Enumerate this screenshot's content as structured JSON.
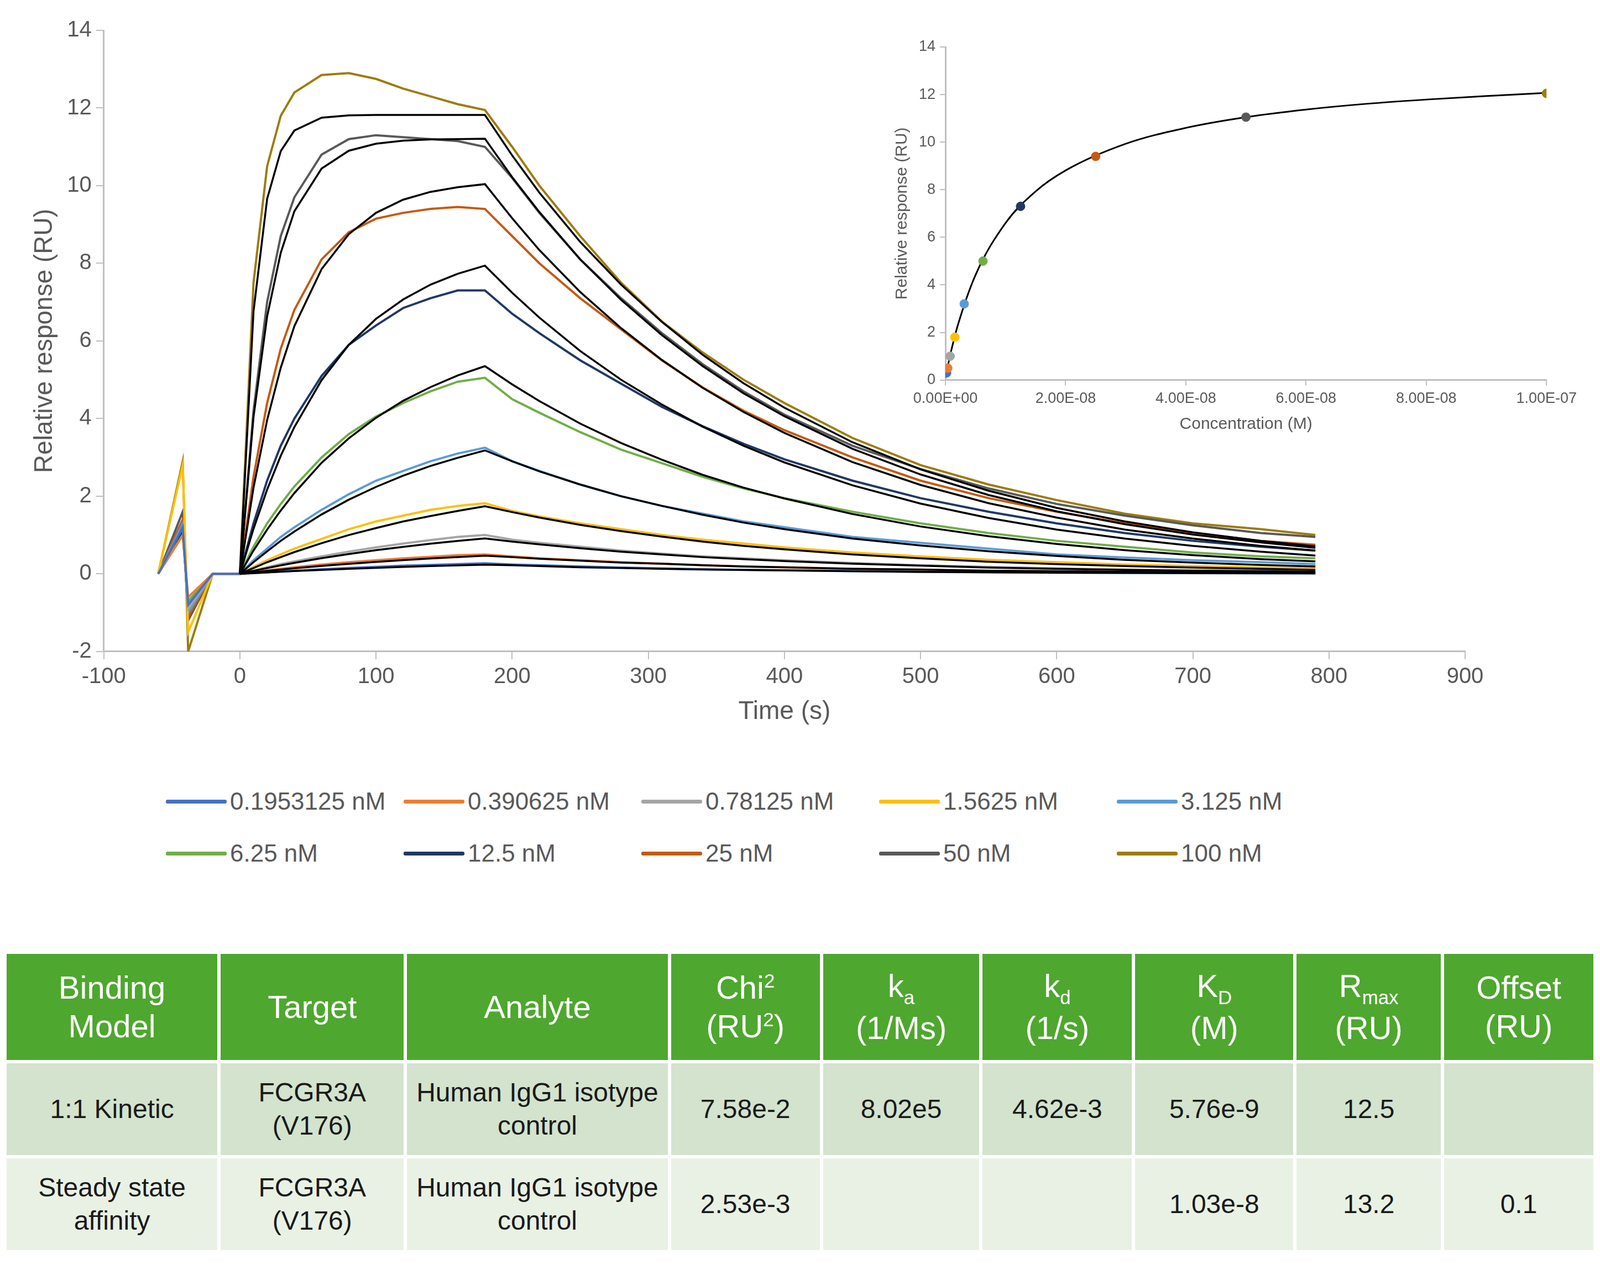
{
  "chart_data": [
    {
      "type": "line",
      "x_label": "Time (s)",
      "y_label": "Relative response (RU)",
      "xlim": [
        -100,
        900
      ],
      "xticks": [
        -100,
        0,
        100,
        200,
        300,
        400,
        500,
        600,
        700,
        800,
        900
      ],
      "ylim": [
        -2,
        14
      ],
      "yticks": [
        -2,
        0,
        2,
        4,
        6,
        8,
        10,
        12,
        14
      ],
      "grid": false,
      "legend": "bottom",
      "x": [
        -60,
        -42,
        -38,
        -20,
        0,
        10,
        20,
        30,
        40,
        60,
        80,
        100,
        120,
        140,
        160,
        180,
        200,
        220,
        250,
        280,
        310,
        340,
        370,
        400,
        450,
        500,
        550,
        600,
        650,
        700,
        750,
        790
      ],
      "series": [
        {
          "name": "0.1953125 nM",
          "color": "#4472c4",
          "values": [
            0,
            1.2,
            -0.8,
            0,
            0,
            0.02,
            0.04,
            0.06,
            0.08,
            0.12,
            0.15,
            0.18,
            0.21,
            0.23,
            0.25,
            0.27,
            0.24,
            0.22,
            0.19,
            0.16,
            0.14,
            0.12,
            0.1,
            0.09,
            0.07,
            0.05,
            0.04,
            0.03,
            0.02,
            0.02,
            0.01,
            0.01
          ],
          "fit": [
            null,
            null,
            null,
            null,
            0,
            0.019,
            0.037,
            0.055,
            0.071,
            0.102,
            0.13,
            0.155,
            0.179,
            0.2,
            0.219,
            0.236,
            0.22,
            0.2,
            0.17,
            0.15,
            0.13,
            0.11,
            0.1,
            0.09,
            0.07,
            0.05,
            0.04,
            0.03,
            0.03,
            0.02,
            0.02,
            0.01
          ]
        },
        {
          "name": "0.390625 nM",
          "color": "#ed7d31",
          "values": [
            0,
            1.0,
            -0.6,
            0,
            0,
            0.04,
            0.09,
            0.13,
            0.17,
            0.24,
            0.3,
            0.35,
            0.4,
            0.44,
            0.48,
            0.5,
            0.45,
            0.4,
            0.35,
            0.3,
            0.26,
            0.22,
            0.19,
            0.17,
            0.13,
            0.1,
            0.08,
            0.06,
            0.05,
            0.04,
            0.03,
            0.03
          ],
          "fit": [
            null,
            null,
            null,
            null,
            0,
            0.038,
            0.075,
            0.109,
            0.142,
            0.203,
            0.258,
            0.308,
            0.354,
            0.395,
            0.433,
            0.466,
            0.43,
            0.39,
            0.34,
            0.29,
            0.26,
            0.22,
            0.19,
            0.17,
            0.13,
            0.11,
            0.08,
            0.07,
            0.05,
            0.04,
            0.03,
            0.03
          ]
        },
        {
          "name": "0.78125 nM",
          "color": "#a5a5a5",
          "values": [
            0,
            1.2,
            -0.9,
            0,
            0,
            0.08,
            0.17,
            0.25,
            0.32,
            0.45,
            0.57,
            0.68,
            0.78,
            0.87,
            0.95,
            1.0,
            0.88,
            0.8,
            0.7,
            0.6,
            0.52,
            0.45,
            0.4,
            0.35,
            0.28,
            0.22,
            0.18,
            0.14,
            0.11,
            0.09,
            0.08,
            0.06
          ],
          "fit": [
            null,
            null,
            null,
            null,
            0,
            0.076,
            0.149,
            0.218,
            0.282,
            0.403,
            0.511,
            0.61,
            0.696,
            0.776,
            0.847,
            0.911,
            0.83,
            0.76,
            0.66,
            0.57,
            0.5,
            0.43,
            0.38,
            0.33,
            0.26,
            0.21,
            0.16,
            0.13,
            0.1,
            0.08,
            0.07,
            0.05
          ]
        },
        {
          "name": "1.5625 nM",
          "color": "#ffc000",
          "values": [
            0,
            2.8,
            -1.5,
            0,
            0,
            0.18,
            0.35,
            0.5,
            0.65,
            0.9,
            1.15,
            1.35,
            1.5,
            1.65,
            1.75,
            1.82,
            1.62,
            1.48,
            1.3,
            1.15,
            1.0,
            0.88,
            0.78,
            0.68,
            0.55,
            0.45,
            0.36,
            0.3,
            0.24,
            0.2,
            0.16,
            0.14
          ],
          "fit": [
            null,
            null,
            null,
            null,
            0,
            0.15,
            0.3,
            0.43,
            0.56,
            0.79,
            1.0,
            1.18,
            1.35,
            1.49,
            1.62,
            1.74,
            1.59,
            1.45,
            1.26,
            1.1,
            0.96,
            0.83,
            0.72,
            0.63,
            0.5,
            0.4,
            0.31,
            0.25,
            0.2,
            0.16,
            0.13,
            0.1
          ]
        },
        {
          "name": "3.125 nM",
          "color": "#5b9bd5",
          "values": [
            0,
            1.3,
            -1.0,
            0,
            0,
            0.35,
            0.65,
            0.95,
            1.2,
            1.65,
            2.05,
            2.4,
            2.65,
            2.9,
            3.1,
            3.25,
            2.9,
            2.65,
            2.3,
            2.0,
            1.75,
            1.55,
            1.35,
            1.2,
            0.95,
            0.8,
            0.65,
            0.5,
            0.42,
            0.35,
            0.3,
            0.25
          ],
          "fit": [
            null,
            null,
            null,
            null,
            0,
            0.3,
            0.58,
            0.85,
            1.09,
            1.53,
            1.91,
            2.24,
            2.53,
            2.78,
            2.99,
            3.18,
            2.9,
            2.64,
            2.3,
            2.0,
            1.75,
            1.52,
            1.32,
            1.15,
            0.91,
            0.73,
            0.58,
            0.46,
            0.36,
            0.29,
            0.23,
            0.19
          ]
        },
        {
          "name": "6.25 nM",
          "color": "#70ad47",
          "values": [
            0,
            1.0,
            -0.7,
            0,
            0,
            0.7,
            1.3,
            1.8,
            2.25,
            3.0,
            3.6,
            4.05,
            4.4,
            4.7,
            4.95,
            5.05,
            4.5,
            4.15,
            3.65,
            3.2,
            2.85,
            2.5,
            2.2,
            1.95,
            1.6,
            1.3,
            1.05,
            0.85,
            0.7,
            0.55,
            0.45,
            0.4
          ],
          "fit": [
            null,
            null,
            null,
            null,
            0,
            0.6,
            1.14,
            1.63,
            2.08,
            2.86,
            3.49,
            4.02,
            4.46,
            4.81,
            5.11,
            5.35,
            4.88,
            4.45,
            3.87,
            3.37,
            2.94,
            2.55,
            2.22,
            1.94,
            1.54,
            1.22,
            0.97,
            0.77,
            0.61,
            0.48,
            0.38,
            0.32
          ]
        },
        {
          "name": "12.5 nM",
          "color": "#203864",
          "values": [
            0,
            1.1,
            -0.8,
            0,
            0,
            1.3,
            2.4,
            3.3,
            4.0,
            5.1,
            5.9,
            6.4,
            6.85,
            7.1,
            7.3,
            7.3,
            6.7,
            6.2,
            5.5,
            4.9,
            4.3,
            3.8,
            3.35,
            2.95,
            2.4,
            1.95,
            1.6,
            1.3,
            1.05,
            0.85,
            0.7,
            0.6
          ],
          "fit": [
            null,
            null,
            null,
            null,
            0,
            1.16,
            2.17,
            3.04,
            3.78,
            4.99,
            5.9,
            6.57,
            7.07,
            7.45,
            7.73,
            7.94,
            7.24,
            6.6,
            5.74,
            5.0,
            4.36,
            3.79,
            3.3,
            2.87,
            2.28,
            1.81,
            1.44,
            1.14,
            0.91,
            0.72,
            0.57,
            0.47
          ]
        },
        {
          "name": "25 nM",
          "color": "#c55a11",
          "values": [
            0,
            1.4,
            -1.1,
            0,
            0,
            2.5,
            4.4,
            5.8,
            6.8,
            8.1,
            8.8,
            9.15,
            9.3,
            9.4,
            9.45,
            9.4,
            8.7,
            8.0,
            7.1,
            6.3,
            5.5,
            4.8,
            4.2,
            3.7,
            3.0,
            2.4,
            1.95,
            1.6,
            1.3,
            1.05,
            0.85,
            0.75
          ],
          "fit": [
            null,
            null,
            null,
            null,
            0,
            2.22,
            3.96,
            5.31,
            6.38,
            7.85,
            8.75,
            9.3,
            9.64,
            9.84,
            9.96,
            10.04,
            9.16,
            8.34,
            7.26,
            6.33,
            5.51,
            4.79,
            4.17,
            3.63,
            2.88,
            2.29,
            1.82,
            1.45,
            1.14,
            0.91,
            0.72,
            0.6
          ]
        },
        {
          "name": "50 nM",
          "color": "#595959",
          "values": [
            0,
            1.6,
            -1.2,
            0,
            0,
            4.2,
            7.0,
            8.7,
            9.7,
            10.8,
            11.2,
            11.3,
            11.25,
            11.2,
            11.15,
            11.0,
            10.2,
            9.3,
            8.1,
            7.1,
            6.2,
            5.4,
            4.7,
            4.1,
            3.3,
            2.7,
            2.2,
            1.8,
            1.5,
            1.25,
            1.05,
            0.95
          ],
          "fit": [
            null,
            null,
            null,
            null,
            0,
            4.04,
            6.63,
            8.27,
            9.34,
            10.44,
            10.9,
            11.08,
            11.16,
            11.19,
            11.2,
            11.21,
            10.22,
            9.32,
            8.1,
            7.06,
            6.15,
            5.35,
            4.65,
            4.06,
            3.22,
            2.56,
            2.03,
            1.61,
            1.28,
            1.01,
            0.81,
            0.67
          ]
        },
        {
          "name": "100 nM",
          "color": "#9c7c0c",
          "values": [
            0,
            2.9,
            -2.0,
            0,
            0,
            7.5,
            10.5,
            11.8,
            12.4,
            12.85,
            12.9,
            12.75,
            12.5,
            12.3,
            12.1,
            11.95,
            11.0,
            10.0,
            8.7,
            7.5,
            6.5,
            5.7,
            5.0,
            4.4,
            3.5,
            2.8,
            2.3,
            1.9,
            1.55,
            1.3,
            1.15,
            1.0
          ],
          "fit": [
            null,
            null,
            null,
            null,
            0,
            6.76,
            9.66,
            10.89,
            11.42,
            11.75,
            11.81,
            11.82,
            11.82,
            11.82,
            11.82,
            11.82,
            10.78,
            9.82,
            8.55,
            7.45,
            6.49,
            5.64,
            4.91,
            4.28,
            3.39,
            2.69,
            2.14,
            1.7,
            1.35,
            1.07,
            0.85,
            0.71
          ]
        }
      ]
    },
    {
      "type": "scatter",
      "x_label": "Concentration (M)",
      "y_label": "Relative response (RU)",
      "xlim": [
        0,
        1e-07
      ],
      "xticks": [
        {
          "value": 0,
          "label": "0.00E+00"
        },
        {
          "value": 2e-08,
          "label": "2.00E-08"
        },
        {
          "value": 4e-08,
          "label": "4.00E-08"
        },
        {
          "value": 6e-08,
          "label": "6.00E-08"
        },
        {
          "value": 8e-08,
          "label": "8.00E-08"
        },
        {
          "value": 1e-07,
          "label": "1.00E-07"
        }
      ],
      "ylim": [
        0,
        14
      ],
      "yticks": [
        0,
        2,
        4,
        6,
        8,
        10,
        12,
        14
      ],
      "grid": false,
      "x": [
        1.953125e-10,
        3.90625e-10,
        7.8125e-10,
        1.5625e-09,
        3.125e-09,
        6.25e-09,
        1.25e-08,
        2.5e-08,
        5e-08,
        1e-07
      ],
      "values": [
        0.3,
        0.5,
        1.0,
        1.8,
        3.2,
        5.0,
        7.3,
        9.4,
        11.05,
        12.05
      ],
      "colors": [
        "#4472c4",
        "#ed7d31",
        "#a5a5a5",
        "#ffc000",
        "#5b9bd5",
        "#70ad47",
        "#203864",
        "#c55a11",
        "#595959",
        "#9c7c0c"
      ],
      "fit": {
        "x": [
          0,
          5e-10,
          1e-09,
          2e-09,
          5e-09,
          1e-08,
          1.5e-08,
          2e-08,
          3e-08,
          4e-08,
          5e-08,
          6e-08,
          7e-08,
          8e-08,
          9e-08,
          1e-07
        ],
        "y": [
          0.1,
          0.71,
          1.27,
          2.25,
          4.41,
          6.6,
          7.93,
          8.81,
          9.93,
          10.6,
          11.05,
          11.37,
          11.61,
          11.79,
          11.94,
          12.07
        ]
      }
    }
  ],
  "table": {
    "header": [
      [
        [
          "Binding"
        ],
        [
          "Model"
        ]
      ],
      [
        [
          "Target"
        ]
      ],
      [
        [
          "Analyte"
        ]
      ],
      [
        [
          "Chi",
          {
            "sup": "2"
          }
        ],
        [
          "(RU",
          {
            "sup": "2"
          },
          ")"
        ]
      ],
      [
        [
          "k",
          {
            "sub": "a"
          }
        ],
        [
          "(1/Ms)"
        ]
      ],
      [
        [
          "k",
          {
            "sub": "d"
          }
        ],
        [
          "(1/s)"
        ]
      ],
      [
        [
          "K",
          {
            "sub": "D"
          }
        ],
        [
          "(M)"
        ]
      ],
      [
        [
          "R",
          {
            "sub": "max"
          }
        ],
        [
          "(RU)"
        ]
      ],
      [
        [
          "Offset"
        ],
        [
          "(RU)"
        ]
      ]
    ],
    "rows": [
      [
        "1:1 Kinetic",
        "FCGR3A (V176)",
        "Human IgG1 isotype control",
        "7.58e-2",
        "8.02e5",
        "4.62e-3",
        "5.76e-9",
        "12.5",
        null
      ],
      [
        "Steady state affinity",
        "FCGR3A (V176)",
        "Human IgG1 isotype control",
        "2.53e-3",
        null,
        null,
        "1.03e-8",
        "13.2",
        "0.1"
      ]
    ]
  }
}
